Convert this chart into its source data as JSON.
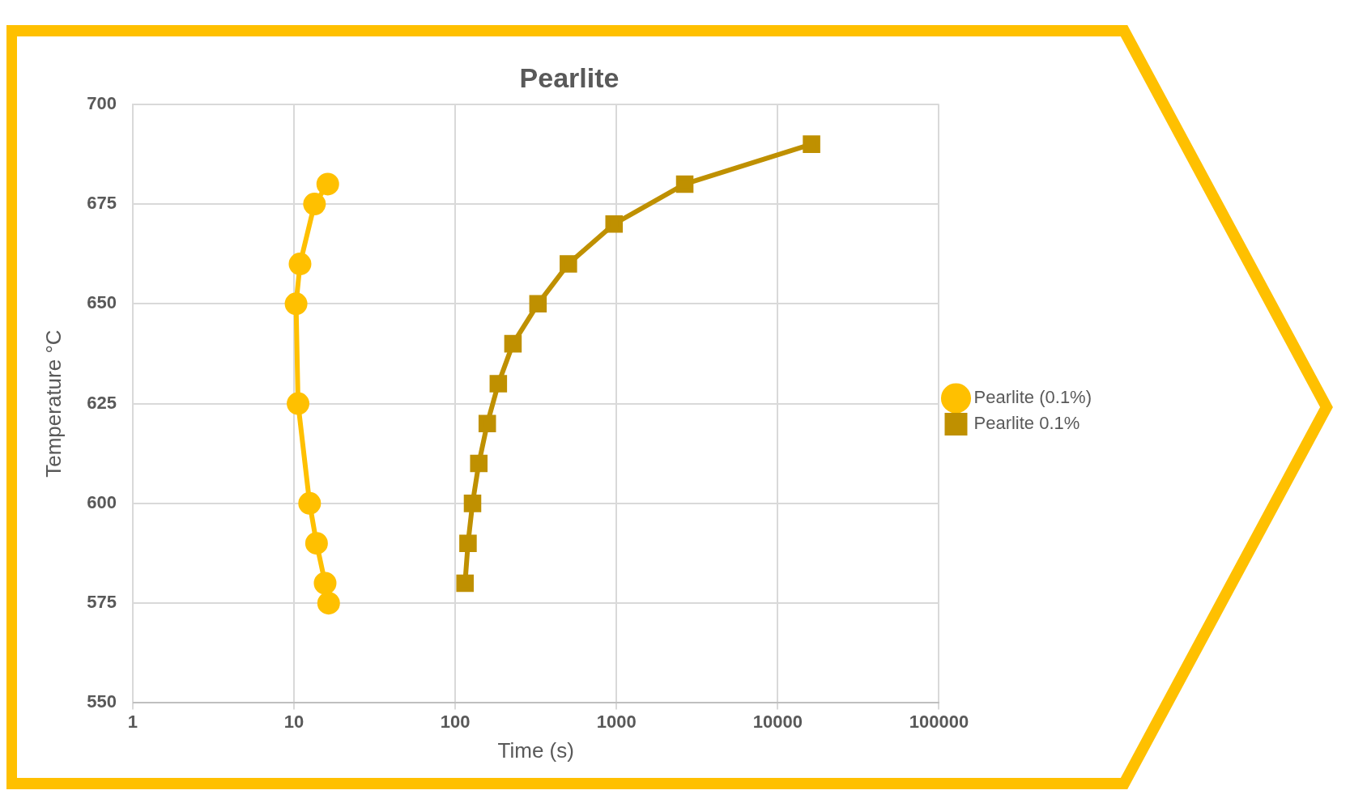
{
  "chart_data": {
    "type": "line",
    "title": "Pearlite",
    "xlabel": "Time (s)",
    "ylabel": "Temperature °C",
    "log": "x",
    "xlim": [
      1,
      100000
    ],
    "xticks": [
      1,
      10,
      100,
      1000,
      10000,
      100000
    ],
    "ylim": [
      550,
      700
    ],
    "yticks": [
      550,
      575,
      600,
      625,
      650,
      675,
      700
    ],
    "grid": true,
    "legend": "right",
    "series": [
      {
        "name": "Pearlite (0.1%)",
        "color": "#ffc000",
        "marker": "circle",
        "x": [
          16.2,
          13.4,
          10.9,
          10.3,
          10.6,
          12.5,
          13.8,
          15.6,
          16.4
        ],
        "values": [
          680,
          675,
          660,
          650,
          625,
          600,
          590,
          580,
          575
        ]
      },
      {
        "name": "Pearlite 0.1%",
        "color": "#bf9000",
        "marker": "square",
        "x": [
          115,
          120,
          128,
          140,
          158,
          185,
          228,
          326,
          503,
          966,
          2650,
          16200
        ],
        "values": [
          580,
          590,
          600,
          610,
          620,
          630,
          640,
          650,
          660,
          670,
          680,
          690
        ]
      }
    ]
  }
}
